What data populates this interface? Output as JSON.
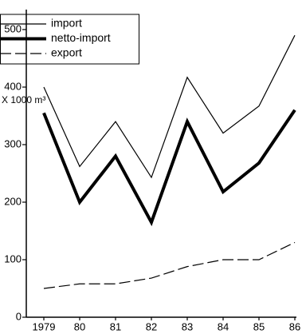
{
  "chart_data": {
    "type": "line",
    "y_axis_label": "X 1000 m³",
    "categories": [
      "1979",
      "80",
      "81",
      "82",
      "83",
      "84",
      "85",
      "86"
    ],
    "series": [
      {
        "name": "import",
        "color": "#000000",
        "width": 1.2,
        "dash": "none",
        "values": [
          400,
          262,
          340,
          243,
          417,
          320,
          367,
          490
        ]
      },
      {
        "name": "netto-import",
        "color": "#000000",
        "width": 4,
        "dash": "none",
        "values": [
          355,
          200,
          280,
          165,
          340,
          218,
          268,
          360
        ]
      },
      {
        "name": "export",
        "color": "#000000",
        "width": 1.2,
        "dash": "14 5",
        "values": [
          50,
          58,
          58,
          68,
          88,
          100,
          100,
          130
        ]
      }
    ],
    "ylim": [
      0,
      500
    ],
    "yticks": [
      0,
      100,
      200,
      300,
      400,
      500
    ],
    "grid": false,
    "legend": "top-left"
  }
}
